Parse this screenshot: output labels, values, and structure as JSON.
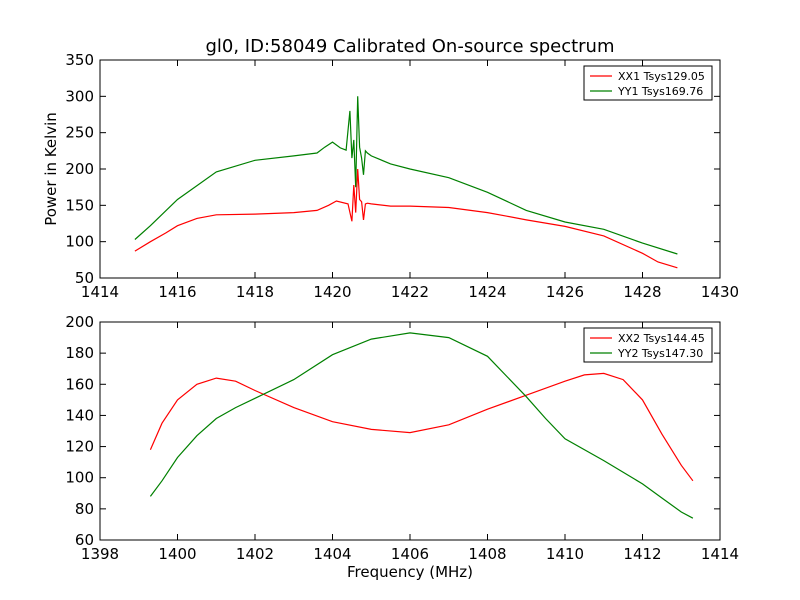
{
  "chart_data": [
    {
      "type": "line",
      "title": "gl0, ID:58049 Calibrated On-source spectrum",
      "xlabel": "",
      "ylabel": "Power in Kelvin",
      "xlim": [
        1414,
        1430
      ],
      "ylim": [
        50,
        350
      ],
      "xticks": [
        "1414",
        "1416",
        "1418",
        "1420",
        "1422",
        "1424",
        "1426",
        "1428",
        "1430"
      ],
      "yticks": [
        "50",
        "100",
        "150",
        "200",
        "250",
        "300",
        "350"
      ],
      "grid": false,
      "legend_position": "top-right",
      "series": [
        {
          "name": "XX1 Tsys129.05",
          "color": "#ff0000",
          "x": [
            1414.9,
            1415.3,
            1415.7,
            1416.0,
            1416.5,
            1417.0,
            1418.0,
            1419.0,
            1419.6,
            1419.9,
            1420.1,
            1420.4,
            1420.5,
            1420.55,
            1420.6,
            1420.65,
            1420.7,
            1420.75,
            1420.8,
            1420.85,
            1420.9,
            1421.0,
            1421.5,
            1422.0,
            1423.0,
            1424.0,
            1424.5,
            1425.0,
            1426.0,
            1427.0,
            1428.0,
            1428.4,
            1428.9
          ],
          "values": [
            87,
            100,
            112,
            122,
            132,
            137,
            138,
            140,
            143,
            150,
            156,
            152,
            128,
            178,
            140,
            200,
            158,
            155,
            130,
            152,
            153,
            152,
            149,
            149,
            147,
            140,
            135,
            130,
            121,
            108,
            84,
            72,
            64
          ]
        },
        {
          "name": "YY1 Tsys169.76",
          "color": "#008000",
          "x": [
            1414.9,
            1415.3,
            1416.0,
            1417.0,
            1418.0,
            1419.0,
            1419.6,
            1419.8,
            1420.0,
            1420.2,
            1420.35,
            1420.45,
            1420.5,
            1420.55,
            1420.6,
            1420.65,
            1420.7,
            1420.75,
            1420.8,
            1420.85,
            1420.9,
            1421.0,
            1421.5,
            1422.0,
            1423.0,
            1424.0,
            1425.0,
            1426.0,
            1427.0,
            1428.0,
            1428.9
          ],
          "values": [
            103,
            122,
            158,
            196,
            212,
            218,
            222,
            230,
            237,
            229,
            226,
            280,
            215,
            240,
            175,
            300,
            230,
            215,
            192,
            225,
            222,
            218,
            207,
            200,
            188,
            168,
            143,
            127,
            117,
            98,
            83
          ]
        }
      ]
    },
    {
      "type": "line",
      "title": "",
      "xlabel": "Frequency (MHz)",
      "ylabel": "",
      "xlim": [
        1398,
        1414
      ],
      "ylim": [
        60,
        200
      ],
      "xticks": [
        "1398",
        "1400",
        "1402",
        "1404",
        "1406",
        "1408",
        "1410",
        "1412",
        "1414"
      ],
      "yticks": [
        "60",
        "80",
        "100",
        "120",
        "140",
        "160",
        "180",
        "200"
      ],
      "grid": false,
      "legend_position": "top-right",
      "series": [
        {
          "name": "XX2 Tsys144.45",
          "color": "#ff0000",
          "x": [
            1399.3,
            1399.6,
            1400.0,
            1400.5,
            1401.0,
            1401.5,
            1402.0,
            1403.0,
            1404.0,
            1405.0,
            1406.0,
            1407.0,
            1408.0,
            1409.0,
            1410.0,
            1410.5,
            1411.0,
            1411.5,
            1412.0,
            1412.5,
            1413.0,
            1413.3
          ],
          "values": [
            118,
            135,
            150,
            160,
            164,
            162,
            156,
            145,
            136,
            131,
            129,
            134,
            144,
            153,
            162,
            166,
            167,
            163,
            150,
            128,
            108,
            98
          ]
        },
        {
          "name": "YY2 Tsys147.30",
          "color": "#008000",
          "x": [
            1399.3,
            1399.6,
            1400.0,
            1400.5,
            1401.0,
            1401.5,
            1402.0,
            1403.0,
            1404.0,
            1405.0,
            1406.0,
            1407.0,
            1408.0,
            1408.5,
            1409.0,
            1409.5,
            1410.0,
            1411.0,
            1412.0,
            1412.5,
            1413.0,
            1413.3
          ],
          "values": [
            88,
            98,
            113,
            127,
            138,
            145,
            151,
            163,
            179,
            189,
            193,
            190,
            178,
            165,
            152,
            138,
            125,
            111,
            96,
            87,
            78,
            74
          ]
        }
      ]
    }
  ]
}
